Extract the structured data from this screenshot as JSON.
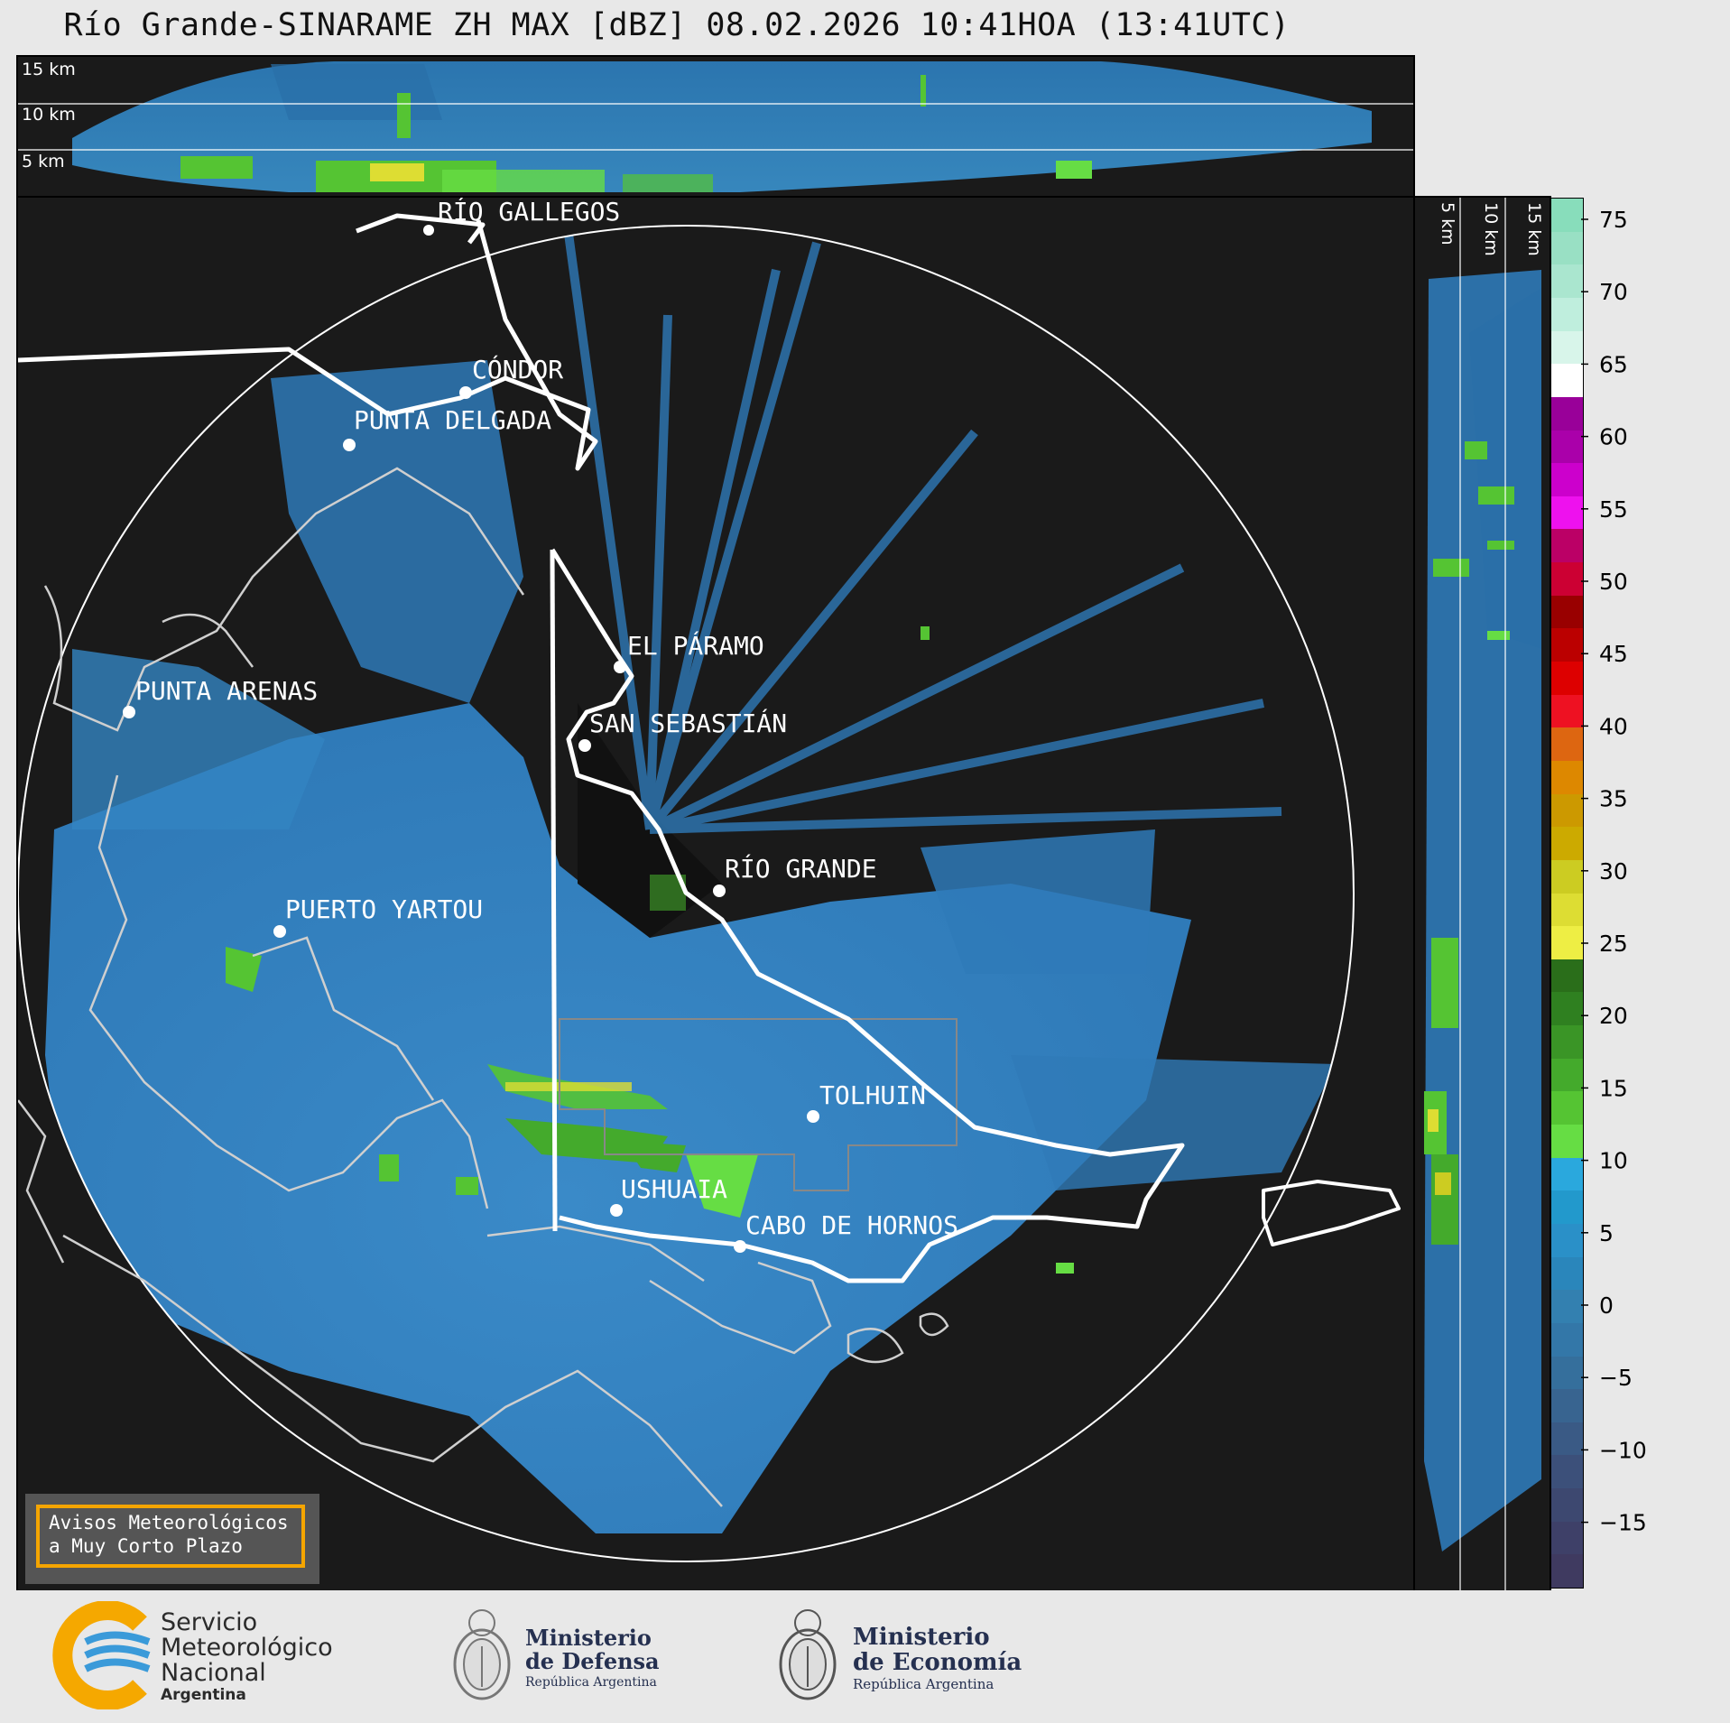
{
  "title": "Río Grande-SINARAME ZH MAX [dBZ] 08.02.2026 10:41HOA (13:41UTC)",
  "height_labels": [
    "15 km",
    "10 km",
    "5 km"
  ],
  "cities": [
    {
      "name": "RÍO GALLEGOS"
    },
    {
      "name": "CÓNDOR"
    },
    {
      "name": "PUNTA DELGADA"
    },
    {
      "name": "EL PÁRAMO"
    },
    {
      "name": "SAN SEBASTIÁN"
    },
    {
      "name": "PUNTA ARENAS"
    },
    {
      "name": "RÍO GRANDE"
    },
    {
      "name": "PUERTO YARTOU"
    },
    {
      "name": "TOLHUIN"
    },
    {
      "name": "USHUAIA"
    },
    {
      "name": "CABO DE HORNOS"
    }
  ],
  "legend": {
    "line1": "Avisos Meteorológicos",
    "line2": "a Muy Corto Plazo"
  },
  "colorbar": {
    "ticks": [
      "75",
      "70",
      "65",
      "60",
      "55",
      "50",
      "45",
      "40",
      "35",
      "30",
      "25",
      "20",
      "15",
      "10",
      "5",
      "0",
      "−5",
      "−10",
      "−15"
    ],
    "colors": [
      "#88ddbb",
      "#99e0c4",
      "#aae6cf",
      "#bfeedd",
      "#d8f5ea",
      "#ffffff",
      "#990099",
      "#aa00aa",
      "#cc00cc",
      "#ee11ee",
      "#bb0066",
      "#cc0033",
      "#990000",
      "#bb0000",
      "#dd0000",
      "#ee1122",
      "#dd6611",
      "#dd8800",
      "#cc9900",
      "#ccaa00",
      "#cccc22",
      "#dddd33",
      "#eeee44",
      "#2a6e1a",
      "#2f8020",
      "#3a9526",
      "#44aa2c",
      "#55c433",
      "#66dd44",
      "#2aa8dd",
      "#2299cc",
      "#2a90c8",
      "#2a86bb",
      "#3380b0",
      "#3377a8",
      "#356f9c",
      "#386490",
      "#3a5a85",
      "#3c507a",
      "#3d4870",
      "#3e4068",
      "#3f3a60"
    ]
  },
  "footer": {
    "smn_line1": "Servicio",
    "smn_line2": "Meteorológico",
    "smn_line3": "Nacional",
    "smn_line4": "Argentina",
    "defensa_line1": "Ministerio",
    "defensa_line2": "de Defensa",
    "defensa_line3": "República Argentina",
    "economia_line1": "Ministerio",
    "economia_line2": "de Economía",
    "economia_line3": "República Argentina"
  },
  "colors": {
    "background": "#1a1a1a",
    "echo_weak": "#3a7fc0",
    "echo_moderate": "#44cc33",
    "echo_strong": "#dddd33",
    "legend_border": "#f5a500",
    "smn_yellow": "#f5a800",
    "smn_blue": "#3a9ad9"
  }
}
